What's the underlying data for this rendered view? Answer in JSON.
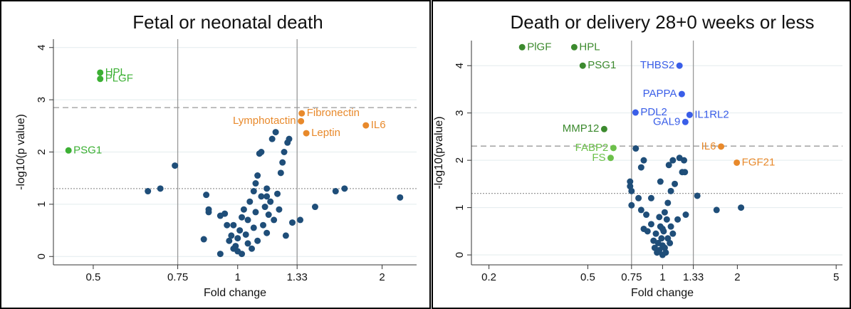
{
  "chart_data": [
    {
      "type": "scatter",
      "title": "Fetal or neonatal death",
      "xlabel": "Fold change",
      "ylabel": "-log10(p value)",
      "xscale": "log",
      "xlim": [
        0.413,
        2.36
      ],
      "ylim": [
        -0.16,
        4.16
      ],
      "xticks": [
        0.5,
        0.75,
        1,
        1.33,
        2
      ],
      "yticks": [
        0,
        1,
        2,
        3,
        4
      ],
      "grid": true,
      "vlines": [
        0.75,
        1.33
      ],
      "hlines": [
        {
          "value": 2.85,
          "style": "dashed"
        },
        {
          "value": 1.3,
          "style": "dotted"
        }
      ],
      "series": [
        {
          "color": "#1f4e79",
          "x": [
            0.65,
            0.69,
            0.74,
            0.86,
            0.87,
            0.87,
            0.85,
            0.92,
            0.92,
            0.94,
            0.95,
            0.96,
            0.97,
            0.98,
            0.99,
            1.0,
            1.0,
            1.01,
            1.02,
            1.03,
            1.04,
            1.05,
            1.05,
            1.06,
            1.07,
            1.08,
            1.08,
            1.09,
            1.09,
            1.1,
            1.1,
            1.11,
            1.12,
            1.12,
            1.13,
            1.14,
            1.15,
            1.15,
            1.16,
            1.17,
            1.18,
            1.19,
            1.2,
            1.21,
            1.22,
            1.23,
            1.24,
            1.25,
            1.26,
            1.27,
            1.28,
            1.3,
            1.35,
            1.45,
            1.6,
            1.67,
            2.18,
            0.98,
            1.02,
            1.15
          ],
          "values": [
            1.25,
            1.3,
            1.74,
            1.18,
            0.9,
            0.85,
            0.33,
            0.05,
            0.78,
            0.82,
            0.6,
            0.3,
            0.4,
            0.15,
            0.2,
            0.1,
            0.35,
            0.5,
            0.05,
            0.9,
            0.42,
            0.25,
            0.7,
            1.05,
            0.15,
            1.25,
            0.55,
            1.4,
            0.85,
            0.3,
            1.55,
            1.97,
            2.0,
            1.15,
            0.6,
            0.95,
            1.3,
            0.45,
            0.8,
            1.05,
            2.25,
            0.7,
            2.38,
            1.2,
            0.9,
            1.6,
            1.8,
            2.0,
            0.4,
            2.18,
            2.25,
            0.65,
            0.7,
            0.95,
            1.25,
            1.3,
            1.13,
            0.6,
            0.75,
            1.15
          ]
        },
        {
          "color": "#3cb034",
          "x": [
            0.517,
            0.517,
            0.444
          ],
          "values": [
            3.52,
            3.4,
            2.03
          ],
          "labels": [
            "HPL",
            "PLGF",
            "PSG1"
          ]
        },
        {
          "color": "#e8892b",
          "x": [
            1.355,
            1.36,
            1.39,
            1.85
          ],
          "values": [
            2.59,
            2.74,
            2.36,
            2.51
          ],
          "labels": [
            "Lymphotactin",
            "Fibronectin",
            "Leptin",
            "IL6"
          ]
        }
      ]
    },
    {
      "type": "scatter",
      "title": "Death or delivery 28+0 weeks or less",
      "xlabel": "Fold change",
      "ylabel": "-log10(pvalue)",
      "xscale": "log",
      "xlim": [
        0.17,
        5.3
      ],
      "ylim": [
        -0.21,
        4.53
      ],
      "xticks": [
        0.2,
        0.5,
        0.75,
        1,
        1.33,
        2,
        5
      ],
      "yticks": [
        0,
        1,
        2,
        3,
        4
      ],
      "grid": true,
      "vlines": [
        0.75,
        1.33
      ],
      "hlines": [
        {
          "value": 2.3,
          "style": "dashed"
        },
        {
          "value": 1.3,
          "style": "dotted"
        }
      ],
      "series": [
        {
          "color": "#1f4e79",
          "x": [
            0.78,
            0.74,
            0.74,
            0.75,
            0.75,
            0.8,
            0.82,
            0.82,
            0.84,
            0.84,
            0.86,
            0.87,
            0.9,
            0.9,
            0.92,
            0.93,
            0.94,
            0.95,
            0.96,
            0.97,
            0.98,
            0.98,
            0.99,
            1.0,
            1.0,
            1.01,
            1.02,
            1.03,
            1.04,
            1.05,
            1.05,
            1.06,
            1.07,
            1.08,
            1.08,
            1.1,
            1.1,
            1.12,
            1.15,
            1.17,
            1.2,
            1.22,
            1.24,
            1.23,
            1.38,
            1.65,
            2.07,
            0.97,
            1.02,
            1.0
          ],
          "values": [
            2.25,
            1.45,
            1.55,
            1.35,
            1.05,
            1.2,
            0.95,
            1.85,
            2.0,
            0.55,
            0.85,
            0.5,
            1.2,
            0.65,
            0.3,
            0.15,
            0.45,
            0.05,
            0.25,
            0.1,
            0.6,
            1.55,
            0.35,
            0.0,
            0.2,
            0.5,
            0.15,
            0.05,
            0.75,
            0.35,
            1.1,
            1.9,
            0.25,
            0.6,
            1.35,
            2.0,
            0.45,
            1.5,
            0.75,
            2.05,
            1.75,
            2.0,
            0.85,
            1.75,
            1.25,
            0.95,
            1.0,
            0.8,
            0.9,
            0.55
          ]
        },
        {
          "color": "#3c8a2e",
          "x": [
            0.272,
            0.441,
            0.477,
            0.582
          ],
          "values": [
            4.39,
            4.39,
            4.0,
            2.66
          ],
          "labels": [
            "PlGF",
            "HPL",
            "PSG1",
            "MMP12"
          ]
        },
        {
          "color": "#6cc04a",
          "x": [
            0.634,
            0.618
          ],
          "values": [
            2.26,
            2.05
          ],
          "labels": [
            "FABP2",
            "FS"
          ]
        },
        {
          "color": "#3a5ee8",
          "x": [
            1.17,
            1.195,
            0.778,
            1.285,
            1.235
          ],
          "values": [
            4.0,
            3.4,
            3.01,
            2.96,
            2.81
          ],
          "labels": [
            "THBS2",
            "PAPPA",
            "PDL2",
            "IL1RL2",
            "GAL9"
          ]
        },
        {
          "color": "#e8892b",
          "x": [
            1.72,
            1.99
          ],
          "values": [
            2.29,
            1.95
          ],
          "labels": [
            "IL6",
            "FGF21"
          ]
        }
      ]
    }
  ]
}
